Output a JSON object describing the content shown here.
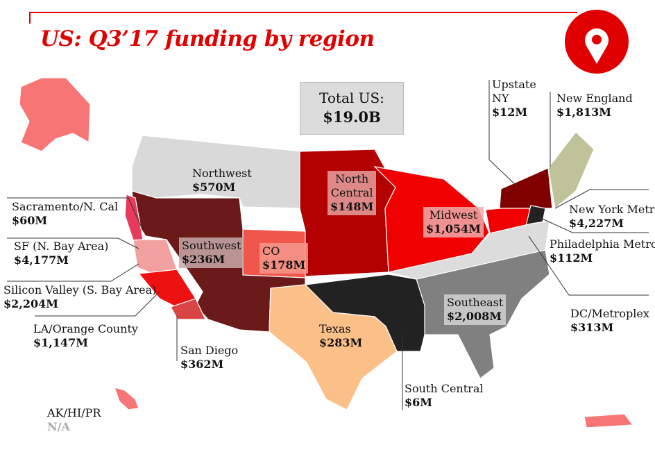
{
  "title": "US: Q3’17 funding by region",
  "icon": "map-pin-icon",
  "colors": {
    "accent": "#e00000",
    "northwest": "#d9d9d9",
    "southwest": "#6b1a1a",
    "north_central": "#b30000",
    "midwest": "#f00000",
    "upstate_ny": "#800000",
    "new_england": "#c0c39a",
    "ny_metro": "#222222",
    "southeast": "#808080",
    "south_central": "#222222",
    "texas": "#fbbf88",
    "co": "#f0564a",
    "ak_hi_pr": "#f87575"
  },
  "total": {
    "label": "Total US:",
    "value": "$19.0B"
  },
  "regions": {
    "northwest": {
      "name": "Northwest",
      "value": "$570M"
    },
    "north_central": {
      "name": "North\nCentral",
      "value": "$148M"
    },
    "midwest": {
      "name": "Midwest",
      "value": "$1,054M"
    },
    "southwest": {
      "name": "Southwest",
      "value": "$236M"
    },
    "co": {
      "name": "CO",
      "value": "$178M"
    },
    "texas": {
      "name": "Texas",
      "value": "$283M"
    },
    "southeast": {
      "name": "Southeast",
      "value": "$2,008M"
    },
    "south_central": {
      "name": "South Central",
      "value": "$6M"
    },
    "upstate_ny": {
      "name": "Upstate\nNY",
      "value": "$12M"
    },
    "new_england": {
      "name": "New England",
      "value": "$1,813M"
    },
    "ny_metro": {
      "name": "New York Metro",
      "value": "$4,227M"
    },
    "philadelphia": {
      "name": "Philadelphia Metro",
      "value": "$112M"
    },
    "dc": {
      "name": "DC/Metroplex",
      "value": "$313M"
    },
    "sacramento": {
      "name": "Sacramento/N. Cal",
      "value": "$60M"
    },
    "sf": {
      "name": "SF (N. Bay Area)",
      "value": "$4,177M"
    },
    "silicon_valley": {
      "name": "Silicon Valley (S. Bay Area)",
      "value": "$2,204M"
    },
    "la": {
      "name": "LA/Orange County",
      "value": "$1,147M"
    },
    "san_diego": {
      "name": "San Diego",
      "value": "$362M"
    },
    "ak_hi_pr": {
      "name": "AK/HI/PR",
      "value": "N/A"
    }
  }
}
